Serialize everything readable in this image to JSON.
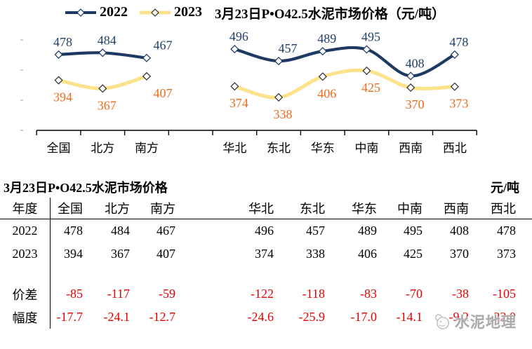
{
  "colors": {
    "navy": "#1E3A63",
    "yellow": "#FBE28B",
    "orange": "#ED6C1C",
    "red": "#E80000",
    "axis": "#000000",
    "watermark_gray": "#9E9E9E"
  },
  "chart": {
    "title": "3月23日P•O42.5水泥市场价格（元/吨）"
  },
  "chart_data": {
    "type": "line",
    "title": "3月23日P•O42.5水泥市场价格（元/吨）",
    "categories": [
      "全国",
      "北方",
      "南方",
      "",
      "华北",
      "东北",
      "华东",
      "中南",
      "西南",
      "西北"
    ],
    "series": [
      {
        "name": "2022",
        "color": "#1E3A63",
        "label_color": "#1F4068",
        "values": [
          478,
          484,
          467,
          null,
          496,
          457,
          489,
          495,
          408,
          478
        ]
      },
      {
        "name": "2023",
        "color": "#FBE28B",
        "label_color": "#ED6C1C",
        "values": [
          394,
          367,
          407,
          null,
          374,
          338,
          406,
          425,
          370,
          373
        ]
      }
    ],
    "ylim": [
      230,
      565
    ],
    "grid": false,
    "legend_position": "top-left",
    "marker": "diamond-open",
    "smooth": true,
    "data_labels": true
  },
  "table": {
    "title": "3月23日P•O42.5水泥市场价格",
    "unit": "元/吨",
    "columns": [
      "年度",
      "全国",
      "北方",
      "南方",
      "",
      "华北",
      "东北",
      "华东",
      "中南",
      "西南",
      "西北"
    ],
    "rows": [
      {
        "label": "2022",
        "style": "normal",
        "values": [
          "478",
          "484",
          "467",
          "",
          "496",
          "457",
          "489",
          "495",
          "408",
          "478"
        ]
      },
      {
        "label": "2023",
        "style": "normal",
        "values": [
          "394",
          "367",
          "407",
          "",
          "374",
          "338",
          "406",
          "425",
          "370",
          "373"
        ]
      },
      {
        "label": "",
        "style": "normal",
        "values": [
          "",
          "",
          "",
          "",
          "",
          "",
          "",
          "",
          "",
          ""
        ]
      },
      {
        "label": "价差",
        "style": "red",
        "values": [
          "-85",
          "-117",
          "-59",
          "",
          "-122",
          "-118",
          "-83",
          "-70",
          "-38",
          "-105"
        ]
      },
      {
        "label": "幅度",
        "style": "red",
        "values": [
          "-17.7",
          "-24.1",
          "-12.7",
          "",
          "-24.6",
          "-25.9",
          "-17.0",
          "-14.1",
          "-9.2",
          "-22.0"
        ]
      }
    ]
  },
  "watermark": {
    "text": "水泥地理"
  }
}
